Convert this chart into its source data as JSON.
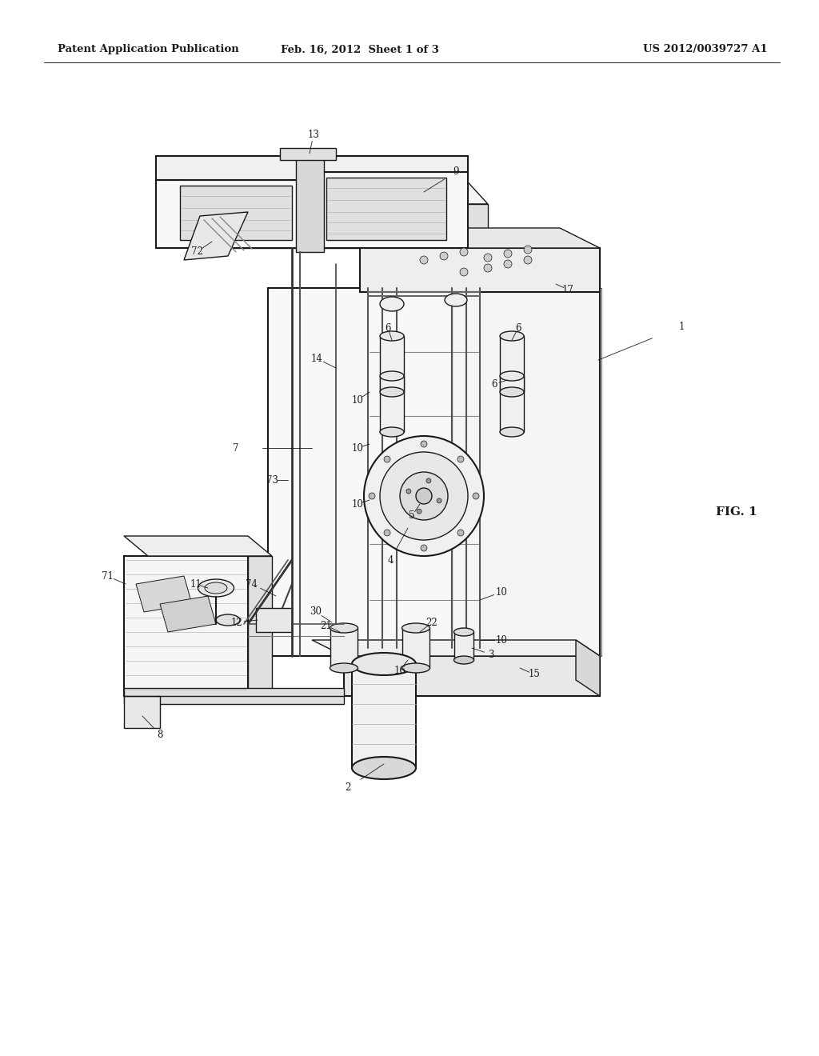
{
  "bg_color": "#ffffff",
  "line_color": "#1a1a1a",
  "header_left": "Patent Application Publication",
  "header_mid": "Feb. 16, 2012  Sheet 1 of 3",
  "header_right": "US 2012/0039727 A1",
  "fig_label": "FIG. 1",
  "header_fontsize": 9.5,
  "annotation_fontsize": 8.5,
  "fig_label_fontsize": 11
}
